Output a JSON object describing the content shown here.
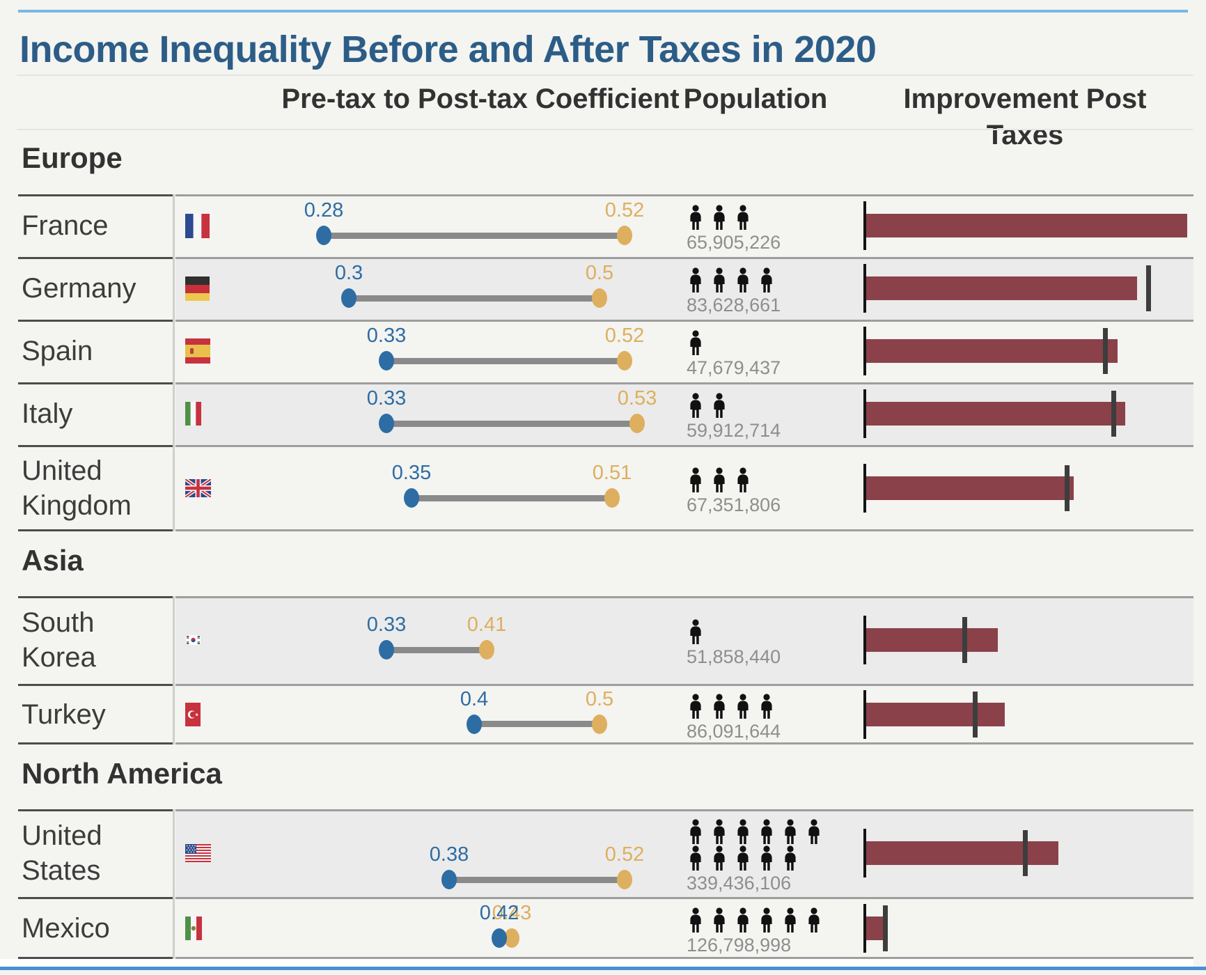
{
  "title": "Income Inequality Before and After Taxes in 2020",
  "columns": {
    "coefficient": "Pre-tax to Post-tax Coefficient",
    "population": "Population",
    "improvement": "Improvement Post Taxes"
  },
  "colors": {
    "title": "#2c5d87",
    "top_line": "#7ab6e3",
    "bottom_line": "#4a8fd2",
    "post_tax": "#2d6da3",
    "pre_tax": "#ddaf5e",
    "connector": "#8a8a8a",
    "bar": "#8b4149",
    "marker": "#3d3d3d",
    "population_count": "#8e8e8e",
    "person": "#111111"
  },
  "chart_data": {
    "type": "table",
    "title": "Income Inequality Before and After Taxes in 2020",
    "columns": [
      "Pre-tax to Post-tax Coefficient",
      "Population",
      "Improvement Post Taxes"
    ],
    "coefficient_axis_range": [
      0.25,
      0.58
    ],
    "groups": [
      {
        "region": "Europe",
        "rows": [
          {
            "country": "France",
            "flag": "fr",
            "two_line": false,
            "post_tax": 0.28,
            "post_tax_label": "0.28",
            "pre_tax": 0.52,
            "pre_tax_label": "0.52",
            "population": "65,905,226",
            "person_icons": 3,
            "improvement_pct": 46.1,
            "marker_pct": null
          },
          {
            "country": "Germany",
            "flag": "de",
            "two_line": false,
            "post_tax": 0.3,
            "post_tax_label": "0.3",
            "pre_tax": 0.5,
            "pre_tax_label": "0.5",
            "population": "83,628,661",
            "person_icons": 4,
            "improvement_pct": 38.9,
            "marker_pct": 40.7
          },
          {
            "country": "Spain",
            "flag": "es",
            "two_line": false,
            "post_tax": 0.33,
            "post_tax_label": "0.33",
            "pre_tax": 0.52,
            "pre_tax_label": "0.52",
            "population": "47,679,437",
            "person_icons": 1,
            "improvement_pct": 36.1,
            "marker_pct": 34.5
          },
          {
            "country": "Italy",
            "flag": "it",
            "two_line": false,
            "post_tax": 0.33,
            "post_tax_label": "0.33",
            "pre_tax": 0.53,
            "pre_tax_label": "0.53",
            "population": "59,912,714",
            "person_icons": 2,
            "improvement_pct": 37.2,
            "marker_pct": 35.7
          },
          {
            "country": "United Kingdom",
            "flag": "gb",
            "two_line": true,
            "post_tax": 0.35,
            "post_tax_label": "0.35",
            "pre_tax": 0.51,
            "pre_tax_label": "0.51",
            "population": "67,351,806",
            "person_icons": 3,
            "improvement_pct": 29.8,
            "marker_pct": 29.0
          }
        ]
      },
      {
        "region": "Asia",
        "rows": [
          {
            "country": "South Korea",
            "flag": "kr",
            "two_line": true,
            "post_tax": 0.33,
            "post_tax_label": "0.33",
            "pre_tax": 0.41,
            "pre_tax_label": "0.41",
            "population": "51,858,440",
            "person_icons": 1,
            "improvement_pct": 18.9,
            "marker_pct": 14.3
          },
          {
            "country": "Turkey",
            "flag": "tr",
            "two_line": false,
            "post_tax": 0.4,
            "post_tax_label": "0.4",
            "pre_tax": 0.5,
            "pre_tax_label": "0.5",
            "population": "86,091,644",
            "person_icons": 4,
            "improvement_pct": 19.9,
            "marker_pct": 15.8
          }
        ]
      },
      {
        "region": "North America",
        "rows": [
          {
            "country": "United States",
            "flag": "us",
            "two_line": true,
            "post_tax": 0.38,
            "post_tax_label": "0.38",
            "pre_tax": 0.52,
            "pre_tax_label": "0.52",
            "population": "339,436,106",
            "person_icons": 11,
            "improvement_pct": 27.6,
            "marker_pct": 23.0
          },
          {
            "country": "Mexico",
            "flag": "mx",
            "two_line": false,
            "post_tax": 0.42,
            "post_tax_label": "0.42",
            "pre_tax": 0.43,
            "pre_tax_label": "0.43",
            "population": "126,798,998",
            "person_icons": 6,
            "improvement_pct": 2.6,
            "marker_pct": 2.9
          }
        ]
      }
    ]
  }
}
